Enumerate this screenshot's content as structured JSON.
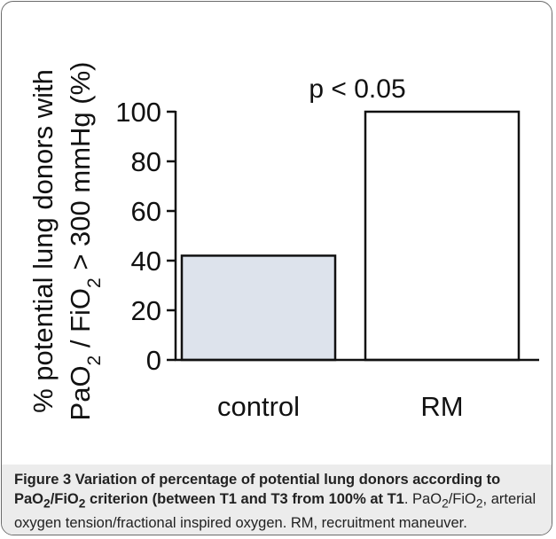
{
  "chart_data": {
    "type": "bar",
    "categories": [
      "control",
      "RM"
    ],
    "values": [
      42,
      100
    ],
    "ylim": [
      0,
      100
    ],
    "yticks": [
      0,
      20,
      40,
      60,
      80,
      100
    ],
    "ylabel_line1": "% potential lung donors with",
    "ylabel_line2": {
      "pre": "PaO",
      "sub1": "2",
      "mid": " / FiO",
      "sub2": "2",
      "post": " > 300 mmHg (%)"
    },
    "annotation": "p < 0.05",
    "bar_colors": [
      "#dde3ec",
      "#ffffff"
    ],
    "grid": false
  },
  "caption": {
    "b1": "Figure 3 Variation of percentage of potential lung donors according to PaO",
    "b2": "2",
    "b3": "/FiO",
    "b4": "2",
    "b5": " criterion (between T1 and T3 from 100% at T1",
    "n1": ". PaO",
    "n2": "2",
    "n3": "/FiO",
    "n4": "2",
    "n5": ", arterial oxygen tension/fractional inspired oxygen. RM, recruitment maneuver."
  }
}
